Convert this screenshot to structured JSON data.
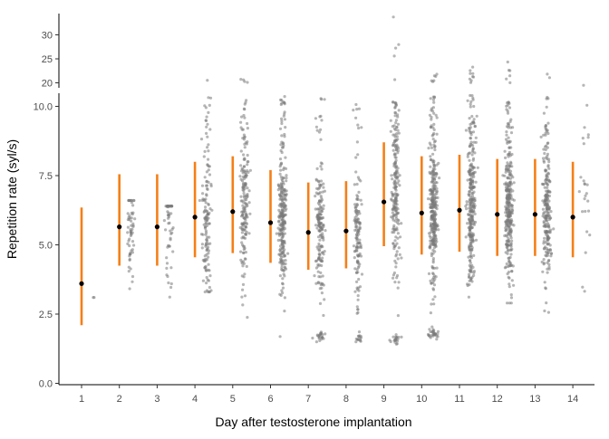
{
  "chart_data": {
    "type": "scatter",
    "title": "",
    "xlabel": "Day after testosterone implantation",
    "ylabel": "Repetition rate (syl/s)",
    "x_ticks": [
      "1",
      "2",
      "3",
      "4",
      "5",
      "6",
      "7",
      "8",
      "9",
      "10",
      "11",
      "12",
      "13",
      "14"
    ],
    "y_ticks_lower": [
      "0.0",
      "2.5",
      "5.0",
      "7.5",
      "10.0"
    ],
    "y_ticks_upper": [
      "20",
      "25",
      "30"
    ],
    "ylim_lower": [
      0,
      10.2
    ],
    "ylim_upper": [
      19.5,
      34.5
    ],
    "axis_break": true,
    "grid": false,
    "colors": {
      "errorbar": "#f57f17",
      "mean": "#000000",
      "points": "#7a7a7a"
    },
    "summary": [
      {
        "day": 1,
        "mean": 3.6,
        "lower": 2.1,
        "upper": 6.35
      },
      {
        "day": 2,
        "mean": 5.65,
        "lower": 4.25,
        "upper": 7.55
      },
      {
        "day": 3,
        "mean": 5.65,
        "lower": 4.25,
        "upper": 7.55
      },
      {
        "day": 4,
        "mean": 6.0,
        "lower": 4.55,
        "upper": 8.0
      },
      {
        "day": 5,
        "mean": 6.2,
        "lower": 4.7,
        "upper": 8.2
      },
      {
        "day": 6,
        "mean": 5.8,
        "lower": 4.35,
        "upper": 7.7
      },
      {
        "day": 7,
        "mean": 5.45,
        "lower": 4.1,
        "upper": 7.25
      },
      {
        "day": 8,
        "mean": 5.5,
        "lower": 4.15,
        "upper": 7.3
      },
      {
        "day": 9,
        "mean": 6.55,
        "lower": 4.95,
        "upper": 8.7
      },
      {
        "day": 10,
        "mean": 6.15,
        "lower": 4.65,
        "upper": 8.2
      },
      {
        "day": 11,
        "mean": 6.25,
        "lower": 4.75,
        "upper": 8.25
      },
      {
        "day": 12,
        "mean": 6.1,
        "lower": 4.6,
        "upper": 8.1
      },
      {
        "day": 13,
        "mean": 6.1,
        "lower": 4.6,
        "upper": 8.1
      },
      {
        "day": 14,
        "mean": 6.0,
        "lower": 4.55,
        "upper": 8.0
      }
    ],
    "points_summary": [
      {
        "day": 1,
        "n": 2,
        "low": 3.1,
        "high": 3.1,
        "clusters": []
      },
      {
        "day": 2,
        "n": 60,
        "low": 2.5,
        "high": 6.6,
        "clusters": []
      },
      {
        "day": 3,
        "n": 55,
        "low": 0.8,
        "high": 6.4,
        "clusters": []
      },
      {
        "day": 4,
        "n": 140,
        "low": 3.3,
        "high": 20.6,
        "clusters": []
      },
      {
        "day": 5,
        "n": 180,
        "low": 1.5,
        "high": 21.0,
        "clusters": []
      },
      {
        "day": 6,
        "n": 260,
        "low": 1.4,
        "high": 10.5,
        "clusters": []
      },
      {
        "day": 7,
        "n": 200,
        "low": 1.5,
        "high": 10.5,
        "clusters": [
          1.7
        ]
      },
      {
        "day": 8,
        "n": 150,
        "low": 1.5,
        "high": 21.0,
        "clusters": [
          1.6
        ]
      },
      {
        "day": 9,
        "n": 230,
        "low": 1.4,
        "high": 34.0,
        "clusters": [
          1.6
        ]
      },
      {
        "day": 10,
        "n": 350,
        "low": 1.3,
        "high": 23.0,
        "clusters": [
          1.8
        ]
      },
      {
        "day": 11,
        "n": 300,
        "low": 3.0,
        "high": 24.0,
        "clusters": []
      },
      {
        "day": 12,
        "n": 300,
        "low": 2.9,
        "high": 25.0,
        "clusters": []
      },
      {
        "day": 13,
        "n": 230,
        "low": 2.5,
        "high": 24.0,
        "clusters": []
      },
      {
        "day": 14,
        "n": 25,
        "low": 0.3,
        "high": 19.5,
        "clusters": []
      }
    ]
  }
}
